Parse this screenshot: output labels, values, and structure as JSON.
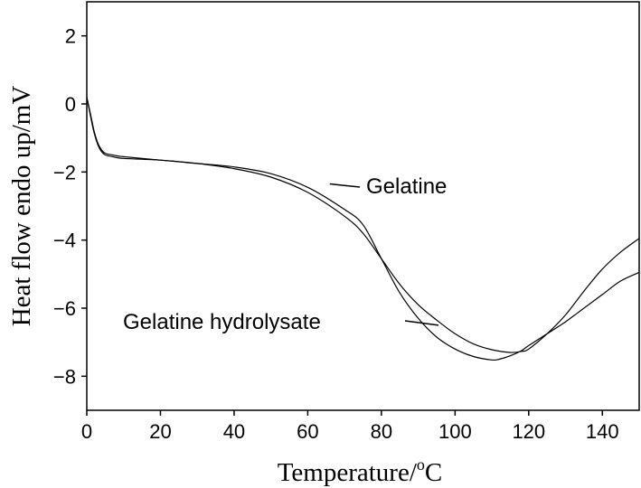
{
  "chart_data": {
    "type": "line",
    "xlabel": "Temperature/",
    "xlabel_unit_sup": "o",
    "xlabel_unit": "C",
    "ylabel": "Heat flow endo up/mV",
    "xlim": [
      0,
      150
    ],
    "ylim": [
      -9,
      3
    ],
    "xticks": [
      0,
      20,
      40,
      60,
      80,
      100,
      120,
      140
    ],
    "yticks": [
      2,
      0,
      -2,
      -4,
      -6,
      -8
    ],
    "ytick_labels": [
      "2",
      "0",
      "−2",
      "−4",
      "−6",
      "−8"
    ],
    "grid": false,
    "series": [
      {
        "name": "Gelatine",
        "color": "#000000",
        "x": [
          0,
          1,
          2,
          3,
          4,
          5,
          7,
          10,
          20,
          30,
          40,
          50,
          60,
          70,
          75,
          80,
          85,
          90,
          95,
          100,
          105,
          110,
          115,
          118,
          120,
          125,
          130,
          135,
          140,
          145,
          150
        ],
        "y": [
          0.2,
          -0.3,
          -0.8,
          -1.15,
          -1.35,
          -1.45,
          -1.5,
          -1.55,
          -1.65,
          -1.75,
          -1.9,
          -2.15,
          -2.6,
          -3.3,
          -3.8,
          -4.55,
          -5.3,
          -5.9,
          -6.35,
          -6.75,
          -7.05,
          -7.22,
          -7.3,
          -7.27,
          -7.2,
          -6.75,
          -6.2,
          -5.5,
          -4.85,
          -4.35,
          -3.95
        ]
      },
      {
        "name": "Gelatine hydrolysate",
        "color": "#000000",
        "x": [
          0,
          1,
          2,
          3,
          4,
          5,
          7,
          10,
          20,
          30,
          40,
          50,
          60,
          70,
          75,
          80,
          85,
          90,
          95,
          100,
          105,
          110,
          112,
          115,
          118,
          120,
          125,
          130,
          135,
          140,
          145,
          150
        ],
        "y": [
          0.2,
          -0.35,
          -0.85,
          -1.2,
          -1.4,
          -1.5,
          -1.55,
          -1.6,
          -1.65,
          -1.75,
          -1.85,
          -2.05,
          -2.45,
          -3.1,
          -3.55,
          -4.55,
          -5.55,
          -6.3,
          -6.85,
          -7.2,
          -7.42,
          -7.52,
          -7.5,
          -7.4,
          -7.25,
          -7.1,
          -6.75,
          -6.4,
          -6.0,
          -5.6,
          -5.2,
          -4.95
        ]
      }
    ],
    "annotations": [
      {
        "text": "Gelatine",
        "series": "Gelatine"
      },
      {
        "text": "Gelatine hydrolysate",
        "series": "Gelatine hydrolysate"
      }
    ]
  }
}
